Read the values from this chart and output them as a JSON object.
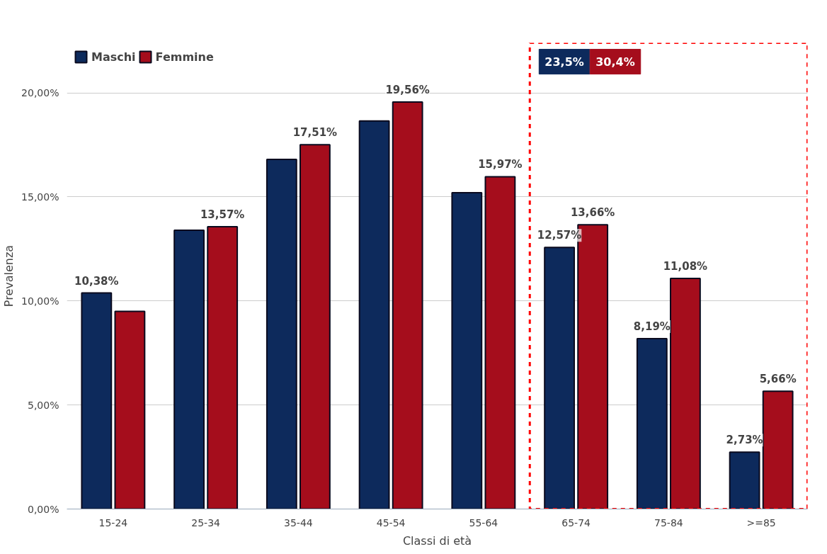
{
  "chart_data": {
    "type": "bar",
    "xlabel": "Classi di età",
    "ylabel": "Prevalenza",
    "categories": [
      "15-24",
      "25-34",
      "35-44",
      "45-54",
      "55-64",
      "65-74",
      "75-84",
      ">=85"
    ],
    "series": [
      {
        "name": "Maschi",
        "color": "#0d2a5c",
        "values": [
          10.38,
          13.4,
          16.8,
          18.65,
          15.2,
          12.57,
          8.19,
          2.73
        ],
        "value_labels": [
          "10,38%",
          null,
          null,
          null,
          null,
          "12,57%",
          "8,19%",
          "2,73%"
        ]
      },
      {
        "name": "Femmine",
        "color": "#a50d1c",
        "values": [
          9.5,
          13.57,
          17.51,
          19.56,
          15.97,
          13.66,
          11.08,
          5.66
        ],
        "value_labels": [
          null,
          "13,57%",
          "17,51%",
          "19,56%",
          "15,97%",
          "13,66%",
          "11,08%",
          "5,66%"
        ]
      }
    ],
    "ylim": [
      0,
      20
    ],
    "yticks": [
      {
        "value": 0,
        "label": "0,00%"
      },
      {
        "value": 5,
        "label": "5,00%"
      },
      {
        "value": 10,
        "label": "10,00%"
      },
      {
        "value": 15,
        "label": "15,00%"
      },
      {
        "value": 20,
        "label": "20,00%"
      }
    ],
    "grid": "y",
    "legend": "top left",
    "annotations": [
      "23,5%",
      "30,4%"
    ]
  }
}
